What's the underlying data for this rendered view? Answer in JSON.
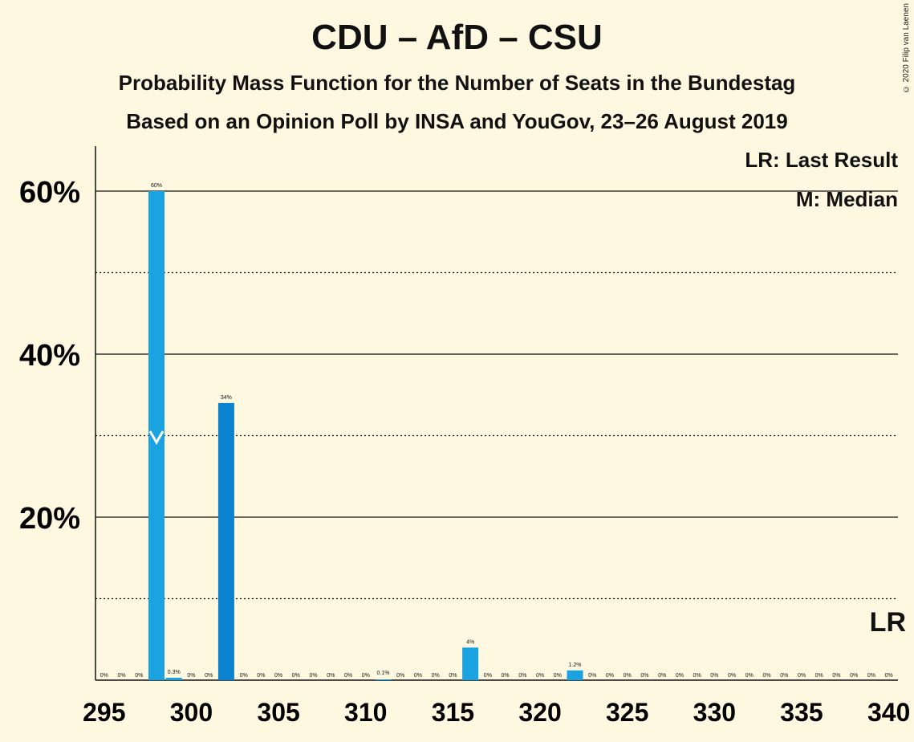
{
  "title": "CDU – AfD – CSU",
  "subtitle": "Probability Mass Function for the Number of Seats in the Bundestag",
  "subtitle2": "Based on an Opinion Poll by INSA and YouGov, 23–26 August 2019",
  "copyright": "© 2020 Filip van Laenen",
  "legend": {
    "last_result": "LR: Last Result",
    "median": "M: Median"
  },
  "lr_marker": "LR",
  "chart_data": {
    "type": "bar",
    "x": [
      295,
      296,
      297,
      298,
      299,
      300,
      301,
      302,
      303,
      304,
      305,
      306,
      307,
      308,
      309,
      310,
      311,
      312,
      313,
      314,
      315,
      316,
      317,
      318,
      319,
      320,
      321,
      322,
      323,
      324,
      325,
      326,
      327,
      328,
      329,
      330,
      331,
      332,
      333,
      334,
      335,
      336,
      337,
      338,
      339,
      340
    ],
    "values": [
      0,
      0,
      0,
      60,
      0.3,
      0,
      0,
      34,
      0,
      0,
      0,
      0,
      0,
      0,
      0,
      0,
      0.1,
      0,
      0,
      0,
      0,
      4,
      0,
      0,
      0,
      0,
      0,
      1.2,
      0,
      0,
      0,
      0,
      0,
      0,
      0,
      0,
      0,
      0,
      0,
      0,
      0,
      0,
      0,
      0,
      0,
      0
    ],
    "labels": [
      "0%",
      "0%",
      "0%",
      "60%",
      "0.3%",
      "0%",
      "0%",
      "34%",
      "0%",
      "0%",
      "0%",
      "0%",
      "0%",
      "0%",
      "0%",
      "0%",
      "0.1%",
      "0%",
      "0%",
      "0%",
      "0%",
      "4%",
      "0%",
      "0%",
      "0%",
      "0%",
      "0%",
      "1.2%",
      "0%",
      "0%",
      "0%",
      "0%",
      "0%",
      "0%",
      "0%",
      "0%",
      "0%",
      "0%",
      "0%",
      "0%",
      "0%",
      "0%",
      "0%",
      "0%",
      "0%",
      "0%"
    ],
    "median": 298,
    "last_result": 340,
    "xticks": [
      "295",
      "300",
      "305",
      "310",
      "315",
      "320",
      "325",
      "330",
      "335",
      "340"
    ],
    "yticks": [
      "20%",
      "40%",
      "60%"
    ],
    "ylim": [
      0,
      65
    ],
    "grid": "solid at 20% steps, dotted at 10% steps",
    "colors": {
      "bar": "#1AA3E0",
      "bar_dark": "#0A82CF",
      "background": "#FFF8E1",
      "median_mark": "#FFFFFF"
    }
  }
}
